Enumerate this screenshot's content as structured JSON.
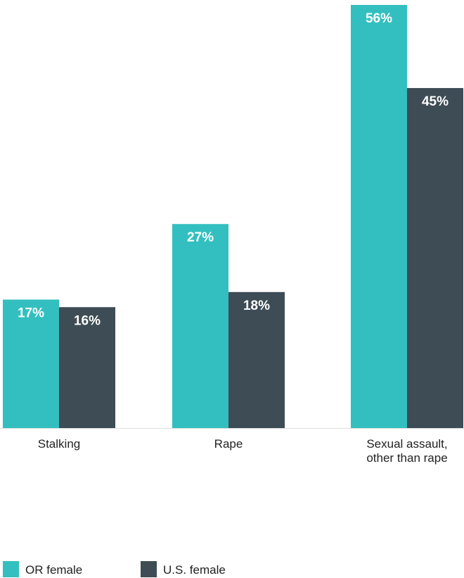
{
  "chart_data": {
    "type": "bar",
    "categories": [
      "Stalking",
      "Rape",
      "Sexual assault, other than rape"
    ],
    "category_lines": [
      [
        "Stalking"
      ],
      [
        "Rape"
      ],
      [
        "Sexual assault,",
        "other than rape"
      ]
    ],
    "series": [
      {
        "name": "OR female",
        "values": [
          17,
          27,
          56
        ],
        "labels": [
          "17%",
          "27%",
          "56%"
        ],
        "color": "#33bfbf"
      },
      {
        "name": "U.S. female",
        "values": [
          16,
          18,
          45
        ],
        "labels": [
          "16%",
          "18%",
          "45%"
        ],
        "color": "#3d4c55"
      }
    ],
    "title": "",
    "xlabel": "",
    "ylabel": "",
    "ylim": [
      0,
      56
    ],
    "grid": false,
    "legend": "bottom-left",
    "value_label_color": "#ffffff",
    "baseline_color": "#dddddd"
  }
}
